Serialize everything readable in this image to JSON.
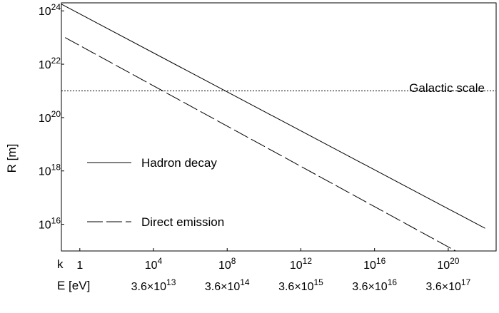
{
  "chart_data": {
    "type": "line",
    "x_scale": "log",
    "y_scale": "log",
    "xlabel": "k",
    "xlabel2": "E [eV]",
    "ylabel": "R [m]",
    "xlim_exp": [
      -1,
      22.6
    ],
    "ylim_exp": [
      15.0,
      24.3
    ],
    "x_ticks": [
      {
        "exp": 0,
        "label": "1"
      },
      {
        "exp": 4,
        "base": "10",
        "sup": "4"
      },
      {
        "exp": 8,
        "base": "10",
        "sup": "8"
      },
      {
        "exp": 12,
        "base": "10",
        "sup": "12"
      },
      {
        "exp": 16,
        "base": "10",
        "sup": "16"
      },
      {
        "exp": 20,
        "base": "10",
        "sup": "20"
      }
    ],
    "x2_ticks": [
      {
        "exp": 4,
        "base": "3.6×10",
        "sup": "13"
      },
      {
        "exp": 8,
        "base": "3.6×10",
        "sup": "14"
      },
      {
        "exp": 12,
        "base": "3.6×10",
        "sup": "15"
      },
      {
        "exp": 16,
        "base": "3.6×10",
        "sup": "16"
      },
      {
        "exp": 20,
        "base": "3.6×10",
        "sup": "17"
      }
    ],
    "y_ticks": [
      {
        "exp": 16,
        "base": "10",
        "sup": "16"
      },
      {
        "exp": 18,
        "base": "10",
        "sup": "18"
      },
      {
        "exp": 20,
        "base": "10",
        "sup": "20"
      },
      {
        "exp": 22,
        "base": "10",
        "sup": "22"
      },
      {
        "exp": 24,
        "base": "10",
        "sup": "24"
      }
    ],
    "series": [
      {
        "name": "Hadron decay",
        "style": "solid",
        "x_exp": [
          -1.0,
          22.0
        ],
        "y_exp": [
          24.25,
          15.85
        ]
      },
      {
        "name": "Direct emission",
        "style": "dashed",
        "x_exp": [
          -0.8,
          21.2
        ],
        "y_exp": [
          23.0,
          14.7
        ]
      }
    ],
    "reference_lines": [
      {
        "label": "Galactic scale",
        "y_exp": 21.0,
        "style": "dotted"
      }
    ],
    "legend": {
      "placement": "center-left"
    }
  }
}
